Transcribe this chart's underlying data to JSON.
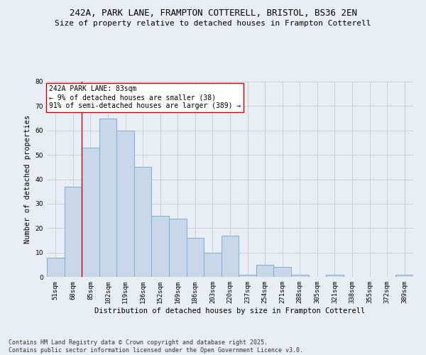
{
  "title_line1": "242A, PARK LANE, FRAMPTON COTTERELL, BRISTOL, BS36 2EN",
  "title_line2": "Size of property relative to detached houses in Frampton Cotterell",
  "xlabel": "Distribution of detached houses by size in Frampton Cotterell",
  "ylabel": "Number of detached properties",
  "categories": [
    "51sqm",
    "68sqm",
    "85sqm",
    "102sqm",
    "119sqm",
    "136sqm",
    "152sqm",
    "169sqm",
    "186sqm",
    "203sqm",
    "220sqm",
    "237sqm",
    "254sqm",
    "271sqm",
    "288sqm",
    "305sqm",
    "321sqm",
    "338sqm",
    "355sqm",
    "372sqm",
    "389sqm"
  ],
  "values": [
    8,
    37,
    53,
    65,
    60,
    45,
    25,
    24,
    16,
    10,
    17,
    1,
    5,
    4,
    1,
    0,
    1,
    0,
    0,
    0,
    1
  ],
  "bar_color": "#c8d8ea",
  "bar_edge_color": "#7bafd4",
  "vline_x_index": 2,
  "vline_color": "#cc0000",
  "annotation_text": "242A PARK LANE: 83sqm\n← 9% of detached houses are smaller (38)\n91% of semi-detached houses are larger (389) →",
  "annotation_box_color": "#ffffff",
  "annotation_box_edge_color": "#cc0000",
  "ylim": [
    0,
    80
  ],
  "yticks": [
    0,
    10,
    20,
    30,
    40,
    50,
    60,
    70,
    80
  ],
  "grid_color": "#cccccc",
  "bg_color": "#e8eef4",
  "footer_line1": "Contains HM Land Registry data © Crown copyright and database right 2025.",
  "footer_line2": "Contains public sector information licensed under the Open Government Licence v3.0.",
  "title_fontsize": 9,
  "subtitle_fontsize": 8,
  "axis_label_fontsize": 7.5,
  "tick_fontsize": 6.5,
  "annotation_fontsize": 7,
  "footer_fontsize": 6
}
